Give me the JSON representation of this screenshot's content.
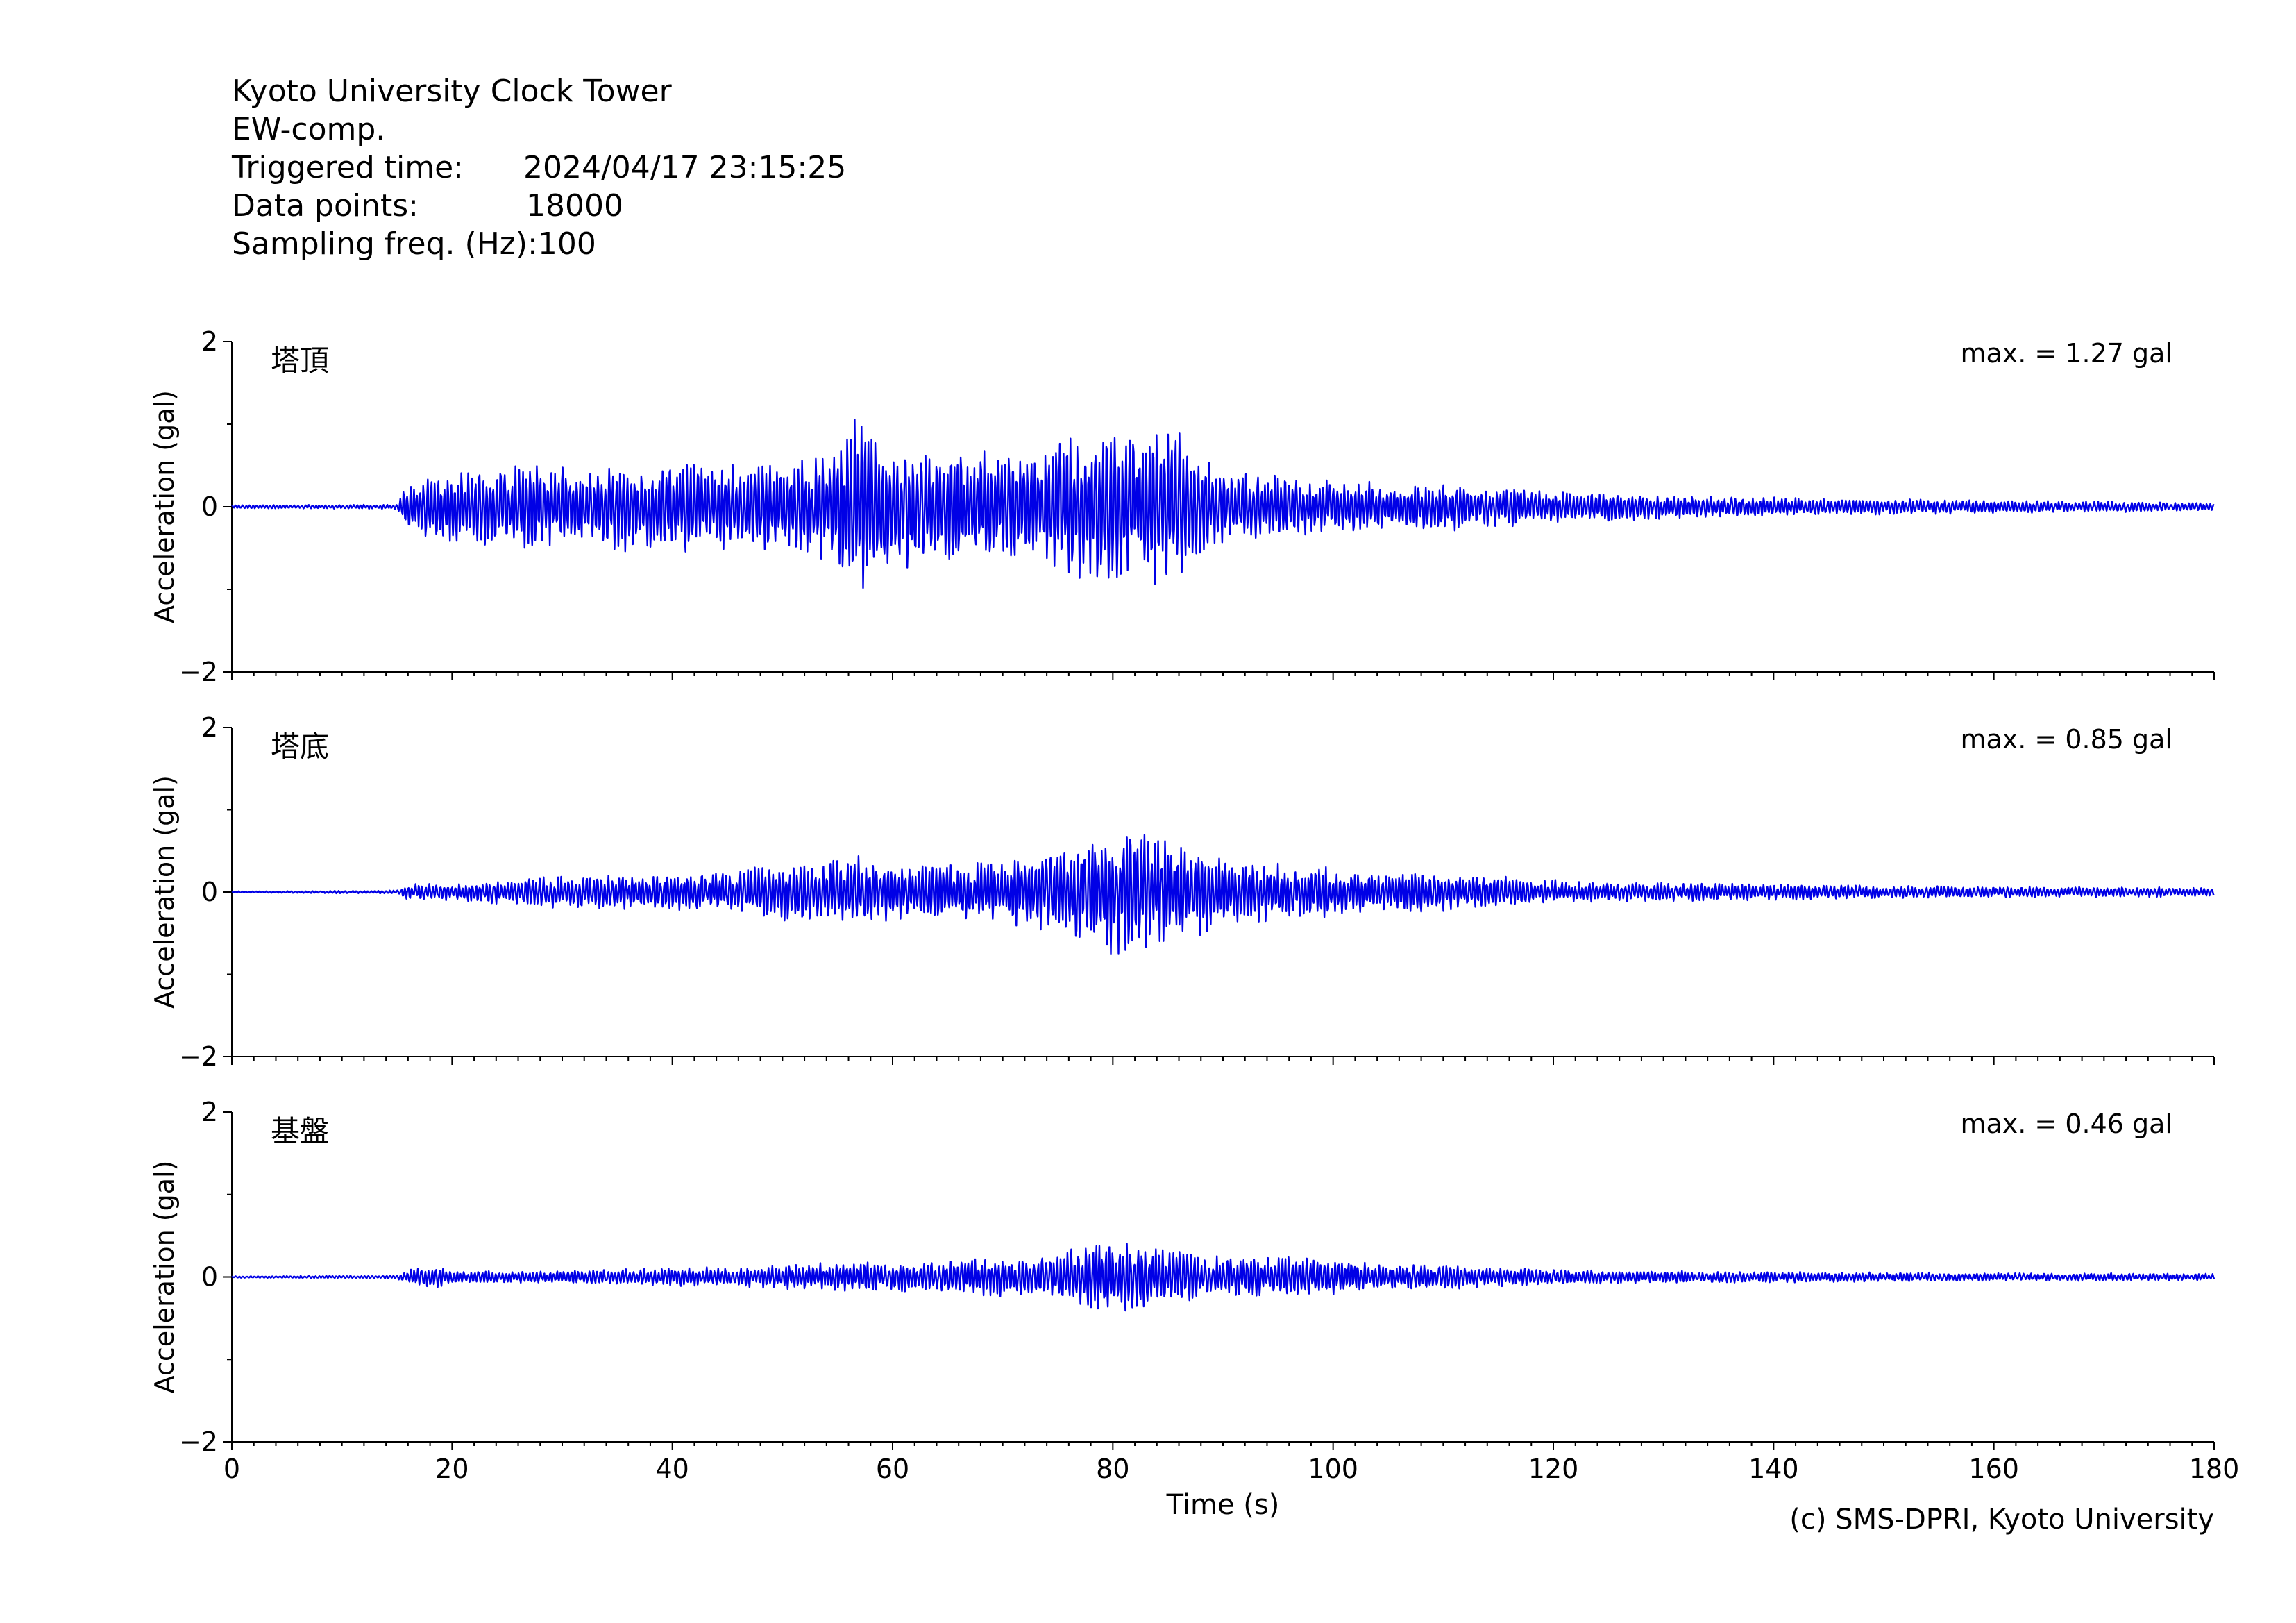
{
  "header": {
    "title": "Kyoto University Clock Tower",
    "component": "EW-comp.",
    "triggered_label": "Triggered time:",
    "triggered_value": "2024/04/17 23:15:25",
    "datapoints_label": "Data points:",
    "datapoints_value": "18000",
    "sampling_label": "Sampling freq. (Hz):",
    "sampling_value": "100"
  },
  "credit": "(c) SMS-DPRI, Kyoto University",
  "colors": {
    "trace": "#0000e6",
    "axis": "#000000",
    "background": "#ffffff"
  },
  "chart_data": [
    {
      "type": "line",
      "panel_label": "塔頂",
      "max_label": "max. = 1.27 gal",
      "ylabel": "Acceleration (gal)",
      "xlabel": "",
      "ylim": [
        -2,
        2
      ],
      "yticks": [
        "2",
        "0",
        "−2"
      ],
      "xlim": [
        0,
        180
      ],
      "xticks": [],
      "series": [
        {
          "values_envelope": {
            "t": [
              0,
              15,
              16,
              20,
              25,
              30,
              35,
              40,
              45,
              50,
              55,
              57,
              60,
              65,
              70,
              75,
              79,
              82,
              84,
              86,
              90,
              95,
              100,
              105,
              110,
              115,
              120,
              125,
              130,
              140,
              150,
              160,
              170,
              180
            ],
            "amp": [
              0.02,
              0.03,
              0.35,
              0.45,
              0.5,
              0.5,
              0.55,
              0.6,
              0.55,
              0.5,
              0.7,
              1.27,
              0.8,
              0.75,
              0.7,
              0.8,
              0.95,
              0.9,
              1.0,
              0.95,
              0.45,
              0.4,
              0.35,
              0.3,
              0.3,
              0.25,
              0.2,
              0.18,
              0.15,
              0.12,
              0.1,
              0.08,
              0.07,
              0.05
            ]
          }
        }
      ]
    },
    {
      "type": "line",
      "panel_label": "塔底",
      "max_label": "max. = 0.85 gal",
      "ylabel": "Acceleration (gal)",
      "xlabel": "",
      "ylim": [
        -2,
        2
      ],
      "yticks": [
        "2",
        "0",
        "−2"
      ],
      "xlim": [
        0,
        180
      ],
      "xticks": [],
      "series": [
        {
          "values_envelope": {
            "t": [
              0,
              15,
              16,
              20,
              25,
              30,
              35,
              40,
              45,
              50,
              55,
              57,
              60,
              65,
              70,
              75,
              79,
              82,
              84,
              86,
              90,
              95,
              100,
              105,
              110,
              115,
              120,
              125,
              130,
              140,
              150,
              160,
              170,
              180
            ],
            "amp": [
              0.01,
              0.02,
              0.1,
              0.12,
              0.15,
              0.2,
              0.22,
              0.22,
              0.25,
              0.35,
              0.4,
              0.45,
              0.35,
              0.35,
              0.4,
              0.5,
              0.8,
              0.85,
              0.7,
              0.65,
              0.4,
              0.35,
              0.3,
              0.25,
              0.25,
              0.2,
              0.15,
              0.12,
              0.12,
              0.1,
              0.08,
              0.07,
              0.07,
              0.05
            ]
          }
        }
      ]
    },
    {
      "type": "line",
      "panel_label": "基盤",
      "max_label": "max. = 0.46 gal",
      "ylabel": "Acceleration (gal)",
      "xlabel": "Time (s)",
      "ylim": [
        -2,
        2
      ],
      "yticks": [
        "2",
        "0",
        "−2"
      ],
      "xlim": [
        0,
        180
      ],
      "xticks": [
        "0",
        "20",
        "40",
        "60",
        "80",
        "100",
        "120",
        "140",
        "160",
        "180"
      ],
      "series": [
        {
          "values_envelope": {
            "t": [
              0,
              15,
              16,
              18,
              20,
              25,
              30,
              35,
              40,
              45,
              50,
              55,
              57,
              60,
              65,
              70,
              75,
              79,
              82,
              84,
              86,
              90,
              95,
              100,
              105,
              110,
              115,
              120,
              125,
              130,
              140,
              150,
              160,
              170,
              180
            ],
            "amp": [
              0.01,
              0.02,
              0.1,
              0.15,
              0.08,
              0.07,
              0.08,
              0.1,
              0.12,
              0.12,
              0.15,
              0.18,
              0.2,
              0.18,
              0.2,
              0.25,
              0.3,
              0.46,
              0.4,
              0.35,
              0.35,
              0.25,
              0.25,
              0.22,
              0.15,
              0.15,
              0.12,
              0.1,
              0.08,
              0.08,
              0.07,
              0.06,
              0.05,
              0.05,
              0.04
            ]
          }
        }
      ]
    }
  ]
}
